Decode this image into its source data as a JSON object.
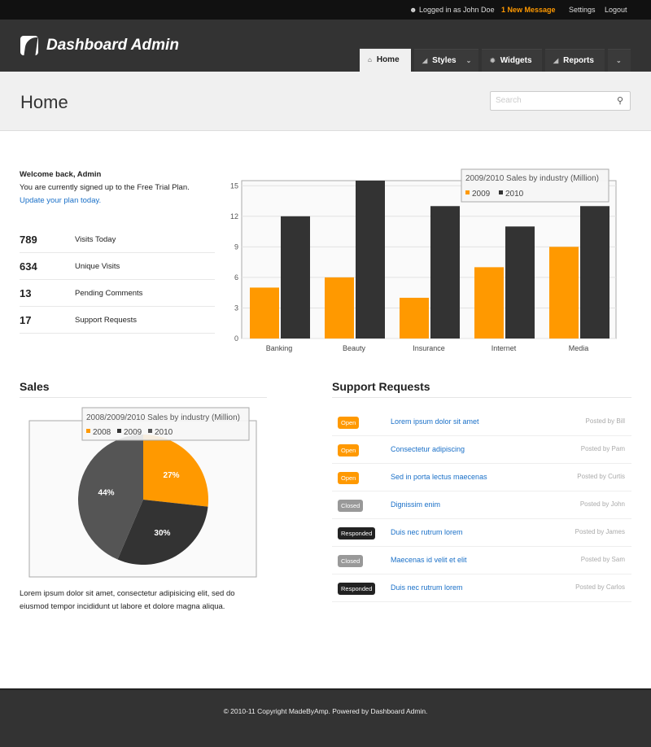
{
  "topbar": {
    "user": "Logged in as John Doe",
    "messages": "1 New Message",
    "settings": "Settings",
    "logout": "Logout"
  },
  "header": {
    "logo": "Dashboard Admin",
    "tabs": [
      {
        "label": "Home",
        "icon": "home-icon"
      },
      {
        "label": "Styles",
        "icon": "triangle-icon"
      },
      {
        "label": "Widgets",
        "icon": "gear-icon"
      },
      {
        "label": "Reports",
        "icon": "triangle-icon"
      }
    ]
  },
  "page": {
    "title": "Home",
    "search_placeholder": "Search"
  },
  "welcome": {
    "heading": "Welcome back, Admin",
    "text": "You are currently signed up to the Free Trial Plan.",
    "link": "Update your plan today."
  },
  "stats": [
    {
      "value": "789",
      "label": "Visits Today"
    },
    {
      "value": "634",
      "label": "Unique Visits"
    },
    {
      "value": "13",
      "label": "Pending Comments"
    },
    {
      "value": "17",
      "label": "Support Requests"
    }
  ],
  "colors": {
    "accent": "#ff9900",
    "dark": "#333333",
    "grey": "#555555",
    "link": "#1a70c8"
  },
  "chart_data": [
    {
      "type": "bar",
      "title": "2009/2010 Sales by industry (Million)",
      "categories": [
        "Banking",
        "Beauty",
        "Insurance",
        "Internet",
        "Media"
      ],
      "series": [
        {
          "name": "2009",
          "values": [
            5,
            6,
            4,
            7,
            9
          ],
          "color": "#ff9900"
        },
        {
          "name": "2010",
          "values": [
            12,
            15.5,
            13,
            11,
            13
          ],
          "color": "#333333"
        }
      ],
      "ylim": [
        0,
        15.5
      ],
      "yticks": [
        0,
        3,
        6,
        9,
        12,
        15
      ],
      "grid": true,
      "legend": "top-right"
    },
    {
      "type": "pie",
      "title": "2008/2009/2010 Sales by industry (Million)",
      "labels": [
        "2008",
        "2009",
        "2010"
      ],
      "values": [
        27,
        30,
        44
      ],
      "value_labels": [
        "27%",
        "30%",
        "44%"
      ],
      "colors": [
        "#ff9900",
        "#333333",
        "#555555"
      ],
      "legend": "top"
    }
  ],
  "sales": {
    "title": "Sales",
    "text": "Lorem ipsum dolor sit amet, consectetur adipisicing elit, sed do eiusmod tempor incididunt ut labore et dolore magna aliqua."
  },
  "support": {
    "title": "Support Requests",
    "rows": [
      {
        "status": "Open",
        "title": "Lorem ipsum dolor sit amet",
        "by": "Posted by Bill"
      },
      {
        "status": "Open",
        "title": "Consectetur adipiscing",
        "by": "Posted by Pam"
      },
      {
        "status": "Open",
        "title": "Sed in porta lectus maecenas",
        "by": "Posted by Curtis"
      },
      {
        "status": "Closed",
        "title": "Dignissim enim",
        "by": "Posted by John"
      },
      {
        "status": "Responded",
        "title": "Duis nec rutrum lorem",
        "by": "Posted by James"
      },
      {
        "status": "Closed",
        "title": "Maecenas id velit et elit",
        "by": "Posted by Sam"
      },
      {
        "status": "Responded",
        "title": "Duis nec rutrum lorem",
        "by": "Posted by Carlos"
      }
    ]
  },
  "footer": {
    "text": "© 2010-11 Copyright MadeByAmp. Powered by Dashboard Admin."
  }
}
